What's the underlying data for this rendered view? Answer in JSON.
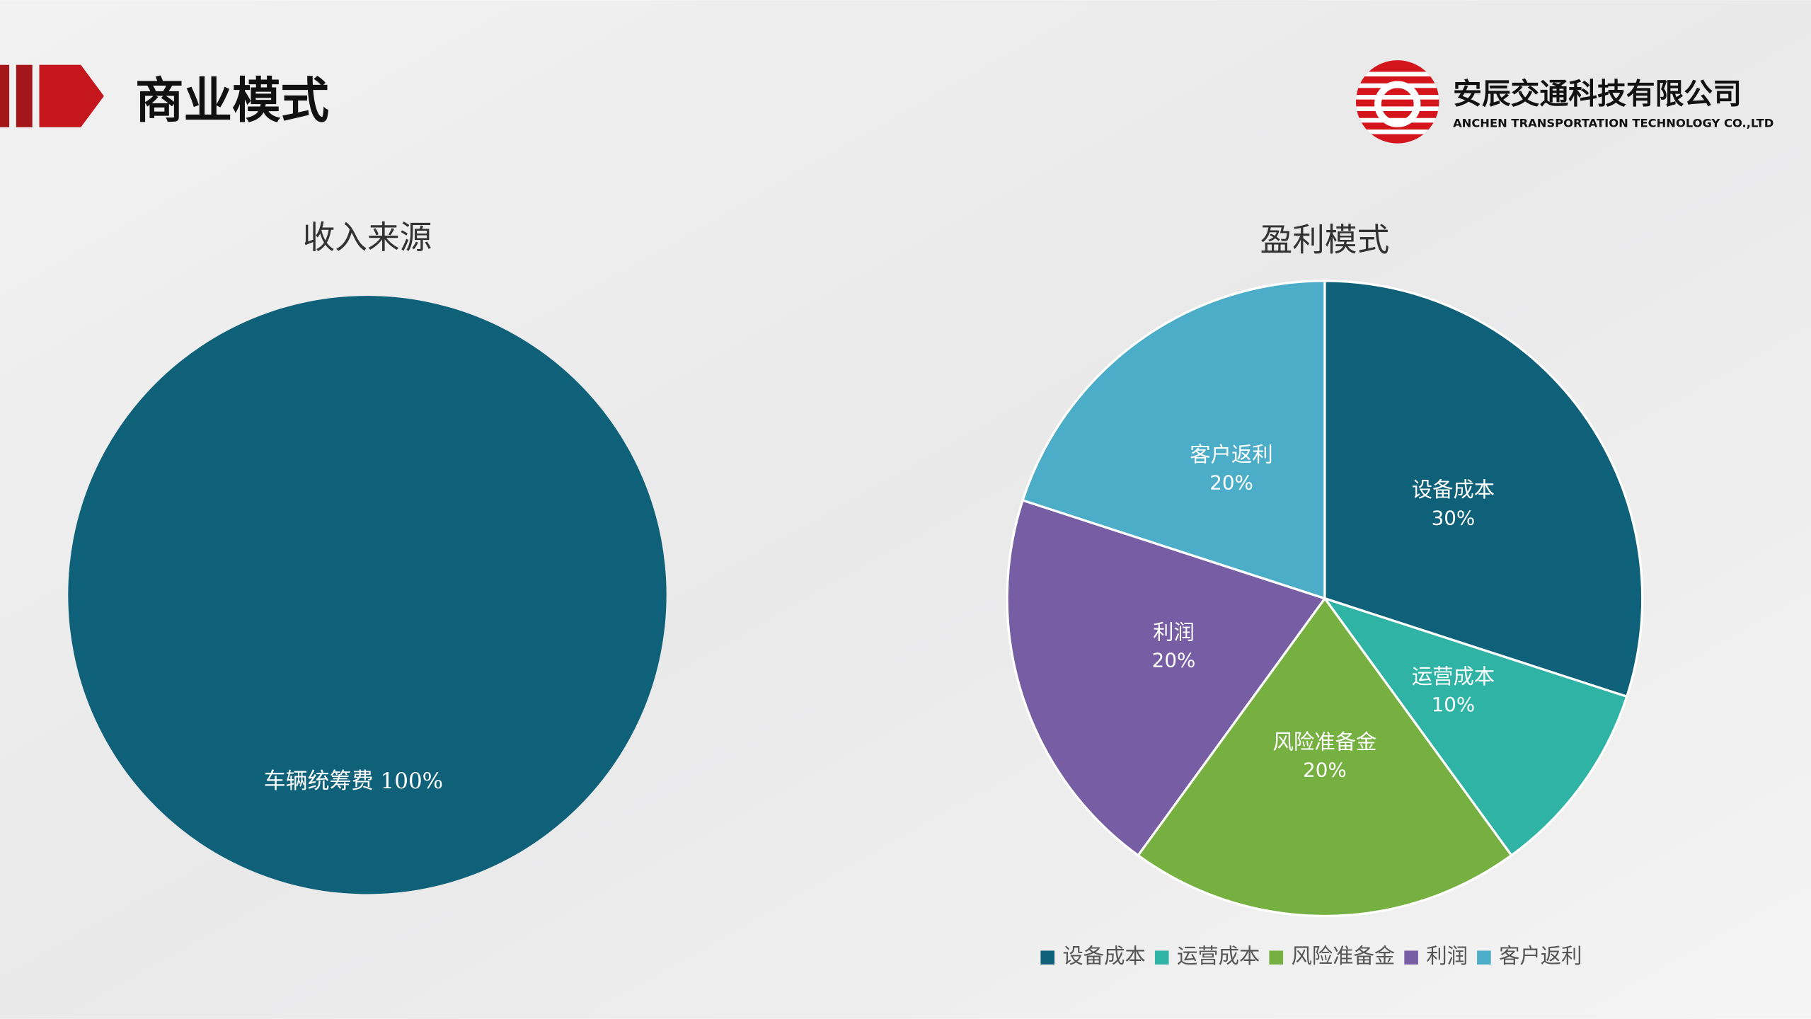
{
  "header": {
    "title": "商业模式",
    "company_name": "安辰交通科技有限公司",
    "company_name_en": "ANCHEN TRANSPORTATION TECHNOLOGY CO.,LTD"
  },
  "chart_data": [
    {
      "type": "pie",
      "title": "收入来源",
      "categories": [
        "车辆统筹费"
      ],
      "values": [
        100
      ],
      "value_labels": [
        "100%"
      ],
      "colors": [
        "#0f6179"
      ],
      "legend": false
    },
    {
      "type": "pie",
      "title": "盈利模式",
      "categories": [
        "设备成本",
        "运营成本",
        "风险准备金",
        "利润",
        "客户返利"
      ],
      "values": [
        30,
        10,
        20,
        20,
        20
      ],
      "value_labels": [
        "30%",
        "10%",
        "20%",
        "20%",
        "20%"
      ],
      "colors": [
        "#0f6179",
        "#2fb3a5",
        "#76b041",
        "#775da3",
        "#4badc7"
      ],
      "legend": "bottom"
    }
  ]
}
